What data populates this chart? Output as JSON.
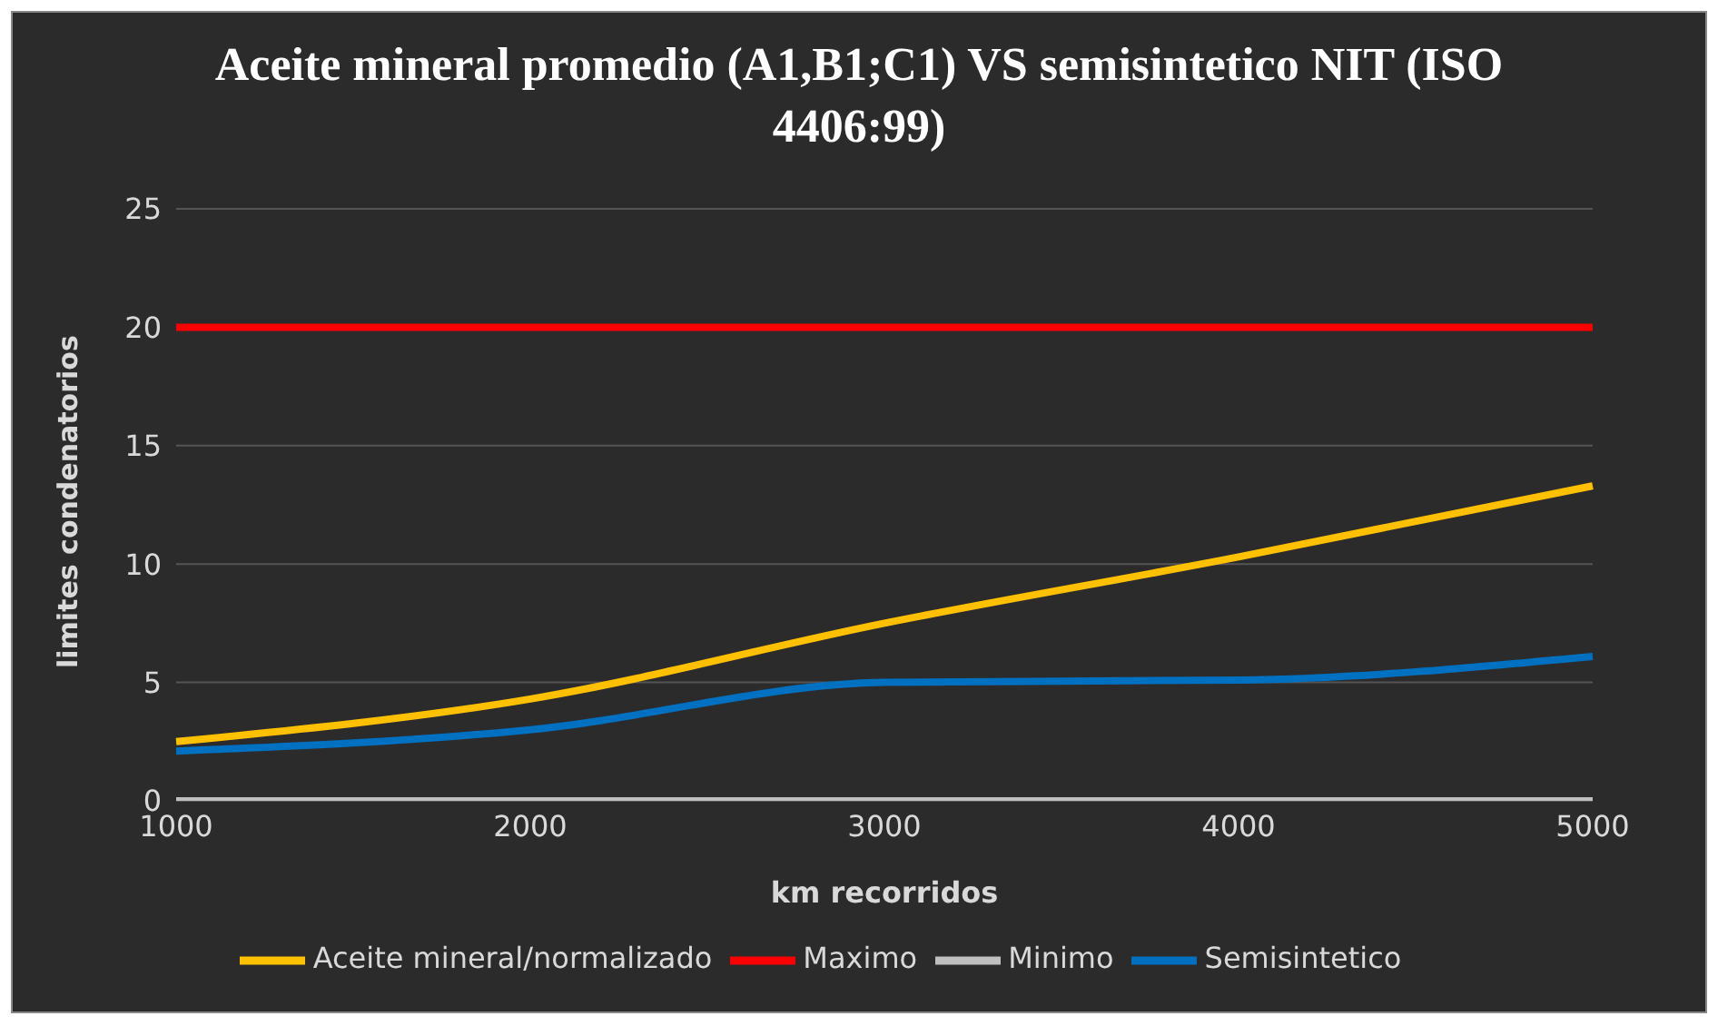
{
  "chart_data": {
    "type": "line",
    "title": "Aceite mineral promedio (A1,B1;C1) VS semisintetico NIT (ISO 4406:99)",
    "xlabel": "km recorridos",
    "ylabel": "limites condenatorios",
    "categories": [
      "1000",
      "2000",
      "3000",
      "4000",
      "5000"
    ],
    "series": [
      {
        "name": "Aceite mineral/normalizado",
        "color": "#ffc000",
        "values": [
          2.5,
          4.3,
          7.5,
          10.3,
          13.3
        ]
      },
      {
        "name": "Semisintetico",
        "color": "#0070c0",
        "values": [
          2.1,
          3.0,
          5.0,
          5.1,
          6.1
        ]
      },
      {
        "name": "Minimo",
        "color": "#bfbfbf",
        "values": [
          0,
          0,
          0,
          0,
          0
        ]
      },
      {
        "name": "Maximo",
        "color": "#ff0000",
        "values": [
          20,
          20,
          20,
          20,
          20
        ]
      }
    ],
    "ylim": [
      0,
      25
    ],
    "yticks": [
      0,
      5,
      10,
      15,
      20,
      25
    ],
    "grid": "y",
    "legend": "bottom",
    "marker": "none",
    "line_style": "solid"
  }
}
